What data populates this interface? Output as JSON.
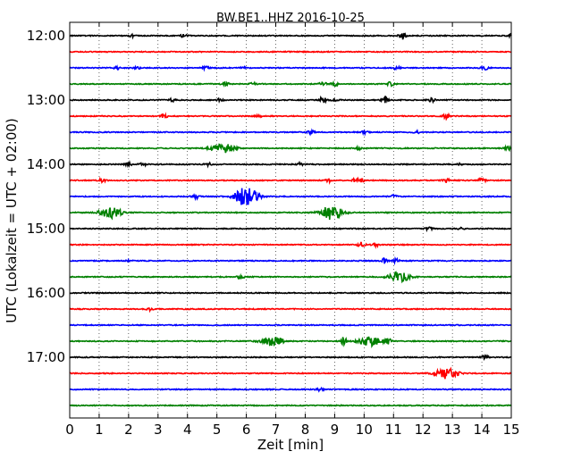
{
  "chart_data": {
    "type": "line",
    "title": "BW.BE1..HHZ 2016-10-25",
    "xlabel": "Zeit  [min]",
    "ylabel": "UTC (Lokalzeit = UTC + 02:00)",
    "xlim": [
      0,
      15
    ],
    "xticks": [
      "0",
      "1",
      "2",
      "3",
      "4",
      "5",
      "6",
      "7",
      "8",
      "9",
      "10",
      "11",
      "12",
      "13",
      "14",
      "15"
    ],
    "ytick_labels": [
      {
        "row": 0,
        "label": "12:00"
      },
      {
        "row": 4,
        "label": "13:00"
      },
      {
        "row": 8,
        "label": "14:00"
      },
      {
        "row": 12,
        "label": "15:00"
      },
      {
        "row": 16,
        "label": "16:00"
      },
      {
        "row": 20,
        "label": "17:00"
      }
    ],
    "grid": true,
    "row_interval_minutes": 15,
    "color_cycle": [
      "#000000",
      "#ff0000",
      "#0000ff",
      "#008000"
    ],
    "traces": [
      {
        "start": "12:00",
        "events": [
          [
            2.1,
            0.25
          ],
          [
            3.9,
            0.4
          ],
          [
            11.3,
            0.7
          ],
          [
            15.0,
            0.5
          ]
        ]
      },
      {
        "start": "12:15",
        "events": []
      },
      {
        "start": "12:30",
        "events": [
          [
            1.6,
            0.3
          ],
          [
            2.3,
            0.2
          ],
          [
            4.6,
            0.35
          ],
          [
            5.9,
            0.3
          ],
          [
            11.1,
            0.35
          ],
          [
            14.1,
            0.35
          ]
        ]
      },
      {
        "start": "12:45",
        "events": [
          [
            5.3,
            0.4
          ],
          [
            6.2,
            0.4
          ],
          [
            8.6,
            0.4
          ],
          [
            9.0,
            0.4
          ],
          [
            10.9,
            0.4
          ]
        ]
      },
      {
        "start": "13:00",
        "events": [
          [
            3.5,
            0.3
          ],
          [
            5.1,
            0.3
          ],
          [
            8.6,
            0.7
          ],
          [
            9.0,
            0.3
          ],
          [
            10.7,
            0.7
          ],
          [
            12.3,
            0.4
          ]
        ]
      },
      {
        "start": "13:15",
        "events": [
          [
            3.2,
            0.4
          ],
          [
            6.4,
            0.2
          ],
          [
            12.8,
            0.5
          ]
        ]
      },
      {
        "start": "13:30",
        "events": [
          [
            8.2,
            0.4
          ],
          [
            10.0,
            0.3
          ],
          [
            11.8,
            0.3
          ]
        ]
      },
      {
        "start": "13:45",
        "events": [
          [
            5.2,
            1.0
          ],
          [
            9.8,
            0.3
          ],
          [
            14.9,
            0.4
          ]
        ]
      },
      {
        "start": "14:00",
        "events": [
          [
            2.0,
            0.3
          ],
          [
            2.5,
            0.3
          ],
          [
            4.7,
            0.3
          ],
          [
            7.8,
            0.3
          ],
          [
            13.2,
            0.2
          ]
        ]
      },
      {
        "start": "14:15",
        "events": [
          [
            1.1,
            0.4
          ],
          [
            8.8,
            0.3
          ],
          [
            9.7,
            0.4
          ],
          [
            9.9,
            0.4
          ],
          [
            12.8,
            0.3
          ],
          [
            14.0,
            0.5
          ]
        ]
      },
      {
        "start": "14:30",
        "events": [
          [
            4.3,
            0.4
          ],
          [
            6.0,
            2.2
          ],
          [
            11.0,
            0.3
          ]
        ]
      },
      {
        "start": "14:45",
        "events": [
          [
            1.4,
            1.1
          ],
          [
            8.9,
            1.5
          ]
        ]
      },
      {
        "start": "15:00",
        "events": [
          [
            12.2,
            0.3
          ],
          [
            13.3,
            0.2
          ]
        ]
      },
      {
        "start": "15:15",
        "events": [
          [
            9.9,
            0.5
          ],
          [
            10.4,
            0.3
          ]
        ]
      },
      {
        "start": "15:30",
        "events": [
          [
            2.0,
            0.2
          ],
          [
            10.7,
            0.5
          ],
          [
            11.1,
            0.4
          ]
        ]
      },
      {
        "start": "15:45",
        "events": [
          [
            5.8,
            0.3
          ],
          [
            11.2,
            1.0
          ]
        ]
      },
      {
        "start": "16:00",
        "events": []
      },
      {
        "start": "16:15",
        "events": [
          [
            2.7,
            0.3
          ]
        ]
      },
      {
        "start": "16:30",
        "events": []
      },
      {
        "start": "16:45",
        "events": [
          [
            6.9,
            1.0
          ],
          [
            9.3,
            0.8
          ],
          [
            10.2,
            1.0
          ],
          [
            10.8,
            0.6
          ]
        ]
      },
      {
        "start": "17:00",
        "events": [
          [
            14.1,
            0.4
          ]
        ]
      },
      {
        "start": "17:15",
        "events": [
          [
            12.8,
            1.1
          ]
        ]
      },
      {
        "start": "17:30",
        "events": [
          [
            8.5,
            0.3
          ]
        ]
      },
      {
        "start": "17:45",
        "events": []
      }
    ]
  }
}
